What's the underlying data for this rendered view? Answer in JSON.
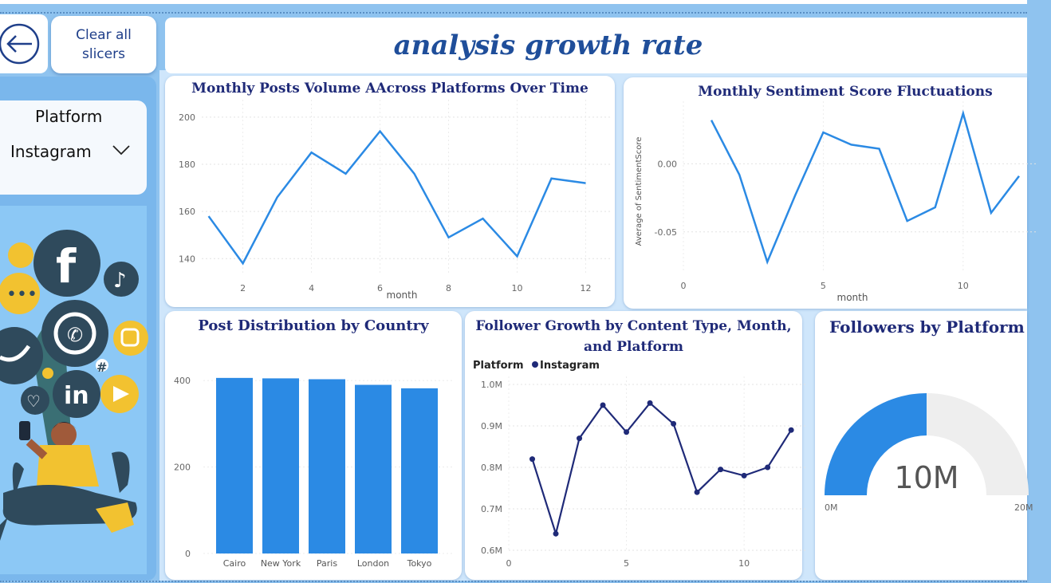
{
  "nav": {
    "clear_label_1": "Clear all",
    "clear_label_2": "slicers",
    "back_icon": "back-arrow-icon"
  },
  "header": {
    "title": "analysis growth rate"
  },
  "slicer": {
    "label": "Platform",
    "value": "Instagram"
  },
  "colors": {
    "accent": "#2b8ae4",
    "navy": "#1f2a78",
    "page": "#8fc3ef"
  },
  "charts": {
    "posts": {
      "title": "Monthly Posts Volume AAcross Platforms Over Time",
      "xlabel": "month",
      "x_ticks": [
        "2",
        "4",
        "6",
        "8",
        "10",
        "12"
      ],
      "y_ticks": [
        "140",
        "160",
        "180",
        "200"
      ]
    },
    "sentiment": {
      "title": "Monthly Sentiment Score Fluctuations",
      "xlabel": "month",
      "ylabel": "Average of SentimentScore",
      "x_ticks": [
        "0",
        "5",
        "10"
      ],
      "y_ticks": [
        "0.00",
        "-0.05"
      ]
    },
    "country": {
      "title": "Post Distribution by Country",
      "y_ticks": [
        "0",
        "200",
        "400"
      ]
    },
    "followers_growth": {
      "title_line1": "Follower Growth by Content Type, Month,",
      "title_line2": "and Platform",
      "legend_label": "Platform",
      "x_ticks": [
        "0",
        "5",
        "10"
      ],
      "y_ticks": [
        "0.6M",
        "0.7M",
        "0.8M",
        "0.9M",
        "1.0M"
      ]
    },
    "gauge": {
      "title": "Followers by Platform",
      "value_label": "10M",
      "min_label": "0M",
      "max_label": "20M",
      "fraction": 0.5
    }
  },
  "chart_data": [
    {
      "type": "line",
      "title": "Monthly Posts Volume AAcross Platforms Over Time",
      "xlabel": "month",
      "ylabel": "",
      "x": [
        1,
        2,
        3,
        4,
        5,
        6,
        7,
        8,
        9,
        10,
        11,
        12
      ],
      "series": [
        {
          "values": [
            158,
            138,
            166,
            185,
            176,
            194,
            176,
            149,
            157,
            141,
            174,
            172
          ]
        }
      ],
      "xlim": [
        0.8,
        12.5
      ],
      "ylim": [
        133,
        204
      ],
      "grid": true
    },
    {
      "type": "line",
      "title": "Monthly Sentiment Score Fluctuations",
      "xlabel": "month",
      "ylabel": "Average of SentimentScore",
      "x": [
        1,
        2,
        3,
        4,
        5,
        6,
        7,
        8,
        9,
        10,
        11,
        12
      ],
      "series": [
        {
          "values": [
            0.032,
            -0.008,
            -0.072,
            -0.023,
            0.023,
            0.014,
            0.011,
            -0.042,
            -0.032,
            0.037,
            -0.036,
            -0.009
          ]
        }
      ],
      "xlim": [
        0,
        12.4
      ],
      "ylim": [
        -0.08,
        0.04
      ],
      "grid": true
    },
    {
      "type": "bar",
      "title": "Post Distribution by Country",
      "categories": [
        "Cairo",
        "New York",
        "Paris",
        "London",
        "Tokyo"
      ],
      "values": [
        406,
        405,
        403,
        390,
        382
      ],
      "ylim": [
        0,
        450
      ],
      "grid": true
    },
    {
      "type": "line",
      "title": "Follower Growth by Content Type, Month, and Platform",
      "legend": {
        "title": "Platform",
        "position": "top-left"
      },
      "x": [
        1,
        2,
        3,
        4,
        5,
        6,
        7,
        8,
        9,
        10,
        11,
        12
      ],
      "series": [
        {
          "name": "Instagram",
          "values": [
            0.82,
            0.64,
            0.87,
            0.95,
            0.885,
            0.955,
            0.905,
            0.74,
            0.795,
            0.78,
            0.8,
            0.89
          ]
        }
      ],
      "xlim": [
        0,
        12.3
      ],
      "ylim": [
        0.6,
        1.0
      ],
      "grid": true
    }
  ]
}
